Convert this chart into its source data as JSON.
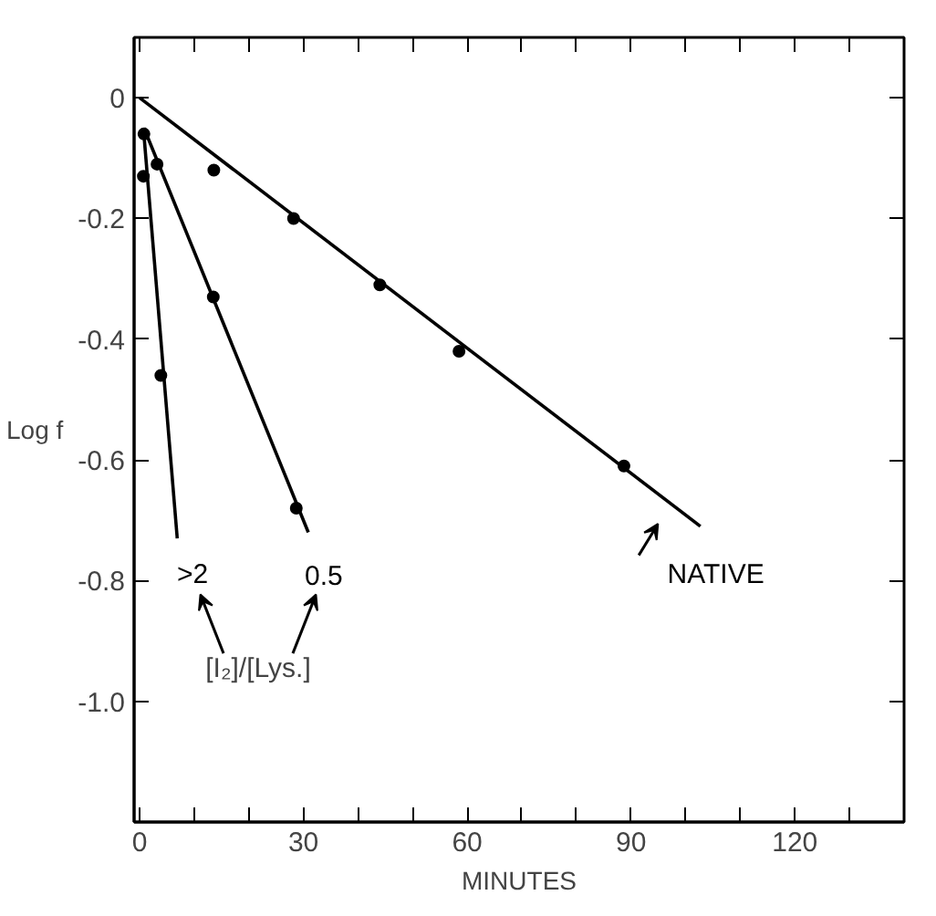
{
  "chart_data": {
    "type": "scatter",
    "xlabel": "MINUTES",
    "ylabel": "Log f",
    "xlim": [
      -1,
      140
    ],
    "ylim": [
      -1.2,
      0.1
    ],
    "xticks": [
      0,
      {
        "value": 10,
        "label": null
      },
      {
        "value": 20,
        "label": null
      },
      30,
      {
        "value": 40,
        "label": null
      },
      {
        "value": 50,
        "label": null
      },
      60,
      {
        "value": 70,
        "label": null
      },
      {
        "value": 80,
        "label": null
      },
      90,
      {
        "value": 100,
        "label": null
      },
      {
        "value": 110,
        "label": null
      },
      120,
      {
        "value": 130,
        "label": null
      }
    ],
    "yticks": [
      0,
      {
        "value": -0.2,
        "label": "-0.2"
      },
      {
        "value": -0.4,
        "label": "-0.4"
      },
      {
        "value": -0.6,
        "label": "-0.6"
      },
      {
        "value": -0.8,
        "label": "-0.8"
      },
      {
        "value": -1.0,
        "label": "-1.0"
      }
    ],
    "grid": false,
    "marker": "circle",
    "series": [
      {
        "color": "#000000",
        "x": [
          13.6,
          28.2,
          44,
          58.5,
          88.7
        ],
        "values": [
          -0.12,
          -0.2,
          -0.31,
          -0.42,
          -0.61
        ]
      },
      {
        "name": "NATIVE",
        "type": "line",
        "color": "#000000",
        "marker": "none",
        "x": [
          0,
          102.7
        ],
        "values": [
          0,
          -0.71
        ]
      },
      {
        "color": "#000000",
        "x": [
          0.8,
          3.2,
          13.5,
          28.7
        ],
        "values": [
          -0.06,
          -0.11,
          -0.33,
          -0.68
        ]
      },
      {
        "name": "0.5",
        "type": "line",
        "color": "#000000",
        "marker": "none",
        "x": [
          0.8,
          30.9
        ],
        "values": [
          -0.05,
          -0.72
        ]
      },
      {
        "color": "#000000",
        "x": [
          0.7,
          3.9
        ],
        "values": [
          -0.13,
          -0.46
        ]
      },
      {
        "name": ">2",
        "type": "line",
        "color": "#000000",
        "marker": "none",
        "x": [
          0.7,
          6.9
        ],
        "values": [
          -0.05,
          -0.73
        ]
      }
    ],
    "annotations": [
      "[I₂]/[Lys.]"
    ]
  }
}
